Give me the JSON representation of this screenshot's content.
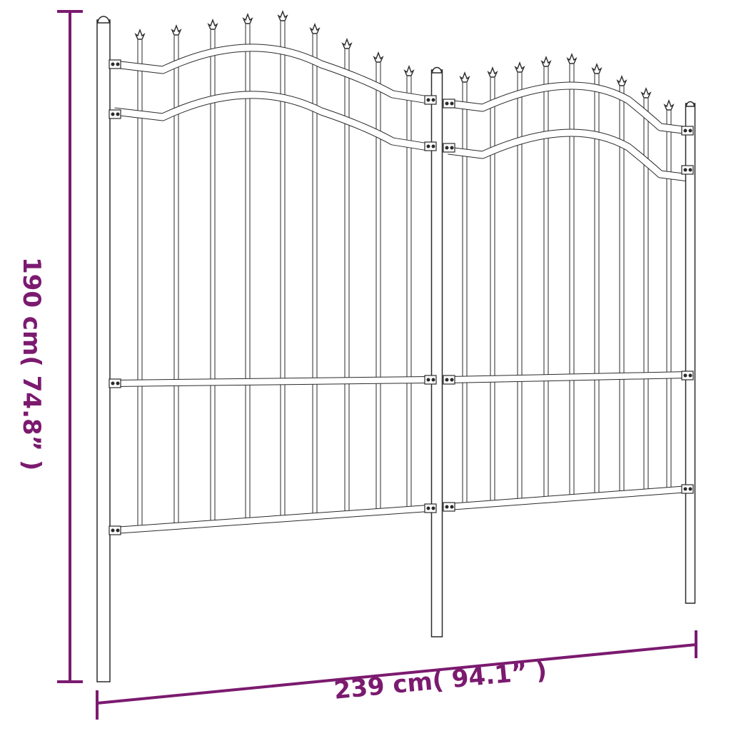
{
  "dimensions": {
    "height_label": "190 cm( 74.8” )",
    "width_label": "239 cm( 94.1” )"
  },
  "colors": {
    "dimension": "#7b1a6f",
    "outline": "#2a2a2a"
  }
}
